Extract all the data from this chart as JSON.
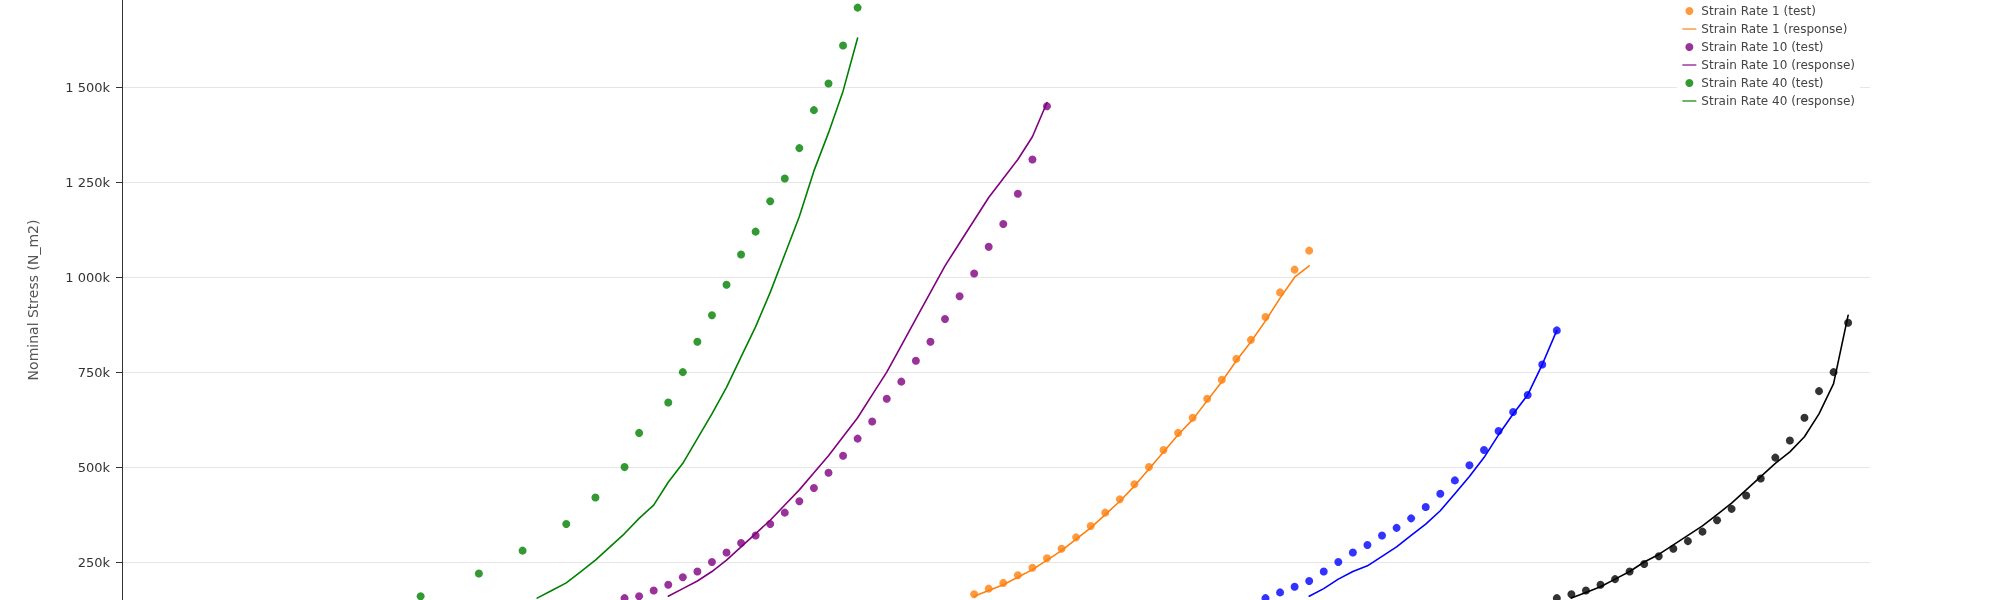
{
  "chart_data": {
    "type": "scatter",
    "ylabel": "Nominal Stress (N_m2)",
    "categories": [
      null,
      null,
      null,
      null,
      null,
      null,
      null,
      null,
      null,
      null,
      null,
      null,
      null,
      null,
      null,
      null,
      null,
      null,
      null,
      null,
      null,
      null,
      null,
      null,
      null,
      null,
      null,
      null,
      null,
      null,
      null,
      null,
      null,
      null,
      null,
      null,
      null,
      null,
      null,
      null,
      null,
      null,
      null,
      null,
      null,
      null,
      null,
      null,
      null,
      null,
      null,
      null,
      null,
      null,
      null,
      null,
      null,
      null,
      null,
      null,
      null,
      null,
      null,
      null,
      null,
      null,
      null,
      null,
      null,
      null,
      null,
      null,
      null,
      null,
      null,
      null,
      null,
      null,
      null,
      null,
      null,
      null,
      null,
      null,
      null,
      null,
      null,
      null,
      null,
      null,
      null,
      null,
      null,
      null,
      null,
      null,
      null,
      null,
      null,
      null,
      null,
      null,
      null,
      null,
      null,
      null,
      null,
      null,
      null,
      null,
      null,
      null,
      null,
      null,
      null,
      null,
      null,
      null,
      null,
      null
    ],
    "ylim": [
      150000,
      1730000
    ],
    "yticks": [
      {
        "value": 250000,
        "label": "250k"
      },
      {
        "value": 500000,
        "label": "500k"
      },
      {
        "value": 750000,
        "label": "750k"
      },
      {
        "value": 1000000,
        "label": "1 000k"
      },
      {
        "value": 1250000,
        "label": "1 250k"
      },
      {
        "value": 1500000,
        "label": "1 500k"
      }
    ],
    "grid": "y",
    "legend": "top right",
    "tick_labels": "y",
    "marker": "circle",
    "series": [
      {
        "name": "Strain Rate 1 (test)",
        "color": "#ff7f0e",
        "values": [
          null,
          null,
          null,
          null,
          null,
          null,
          null,
          null,
          null,
          null,
          null,
          null,
          null,
          null,
          null,
          null,
          null,
          null,
          null,
          null,
          null,
          null,
          null,
          null,
          null,
          null,
          null,
          null,
          null,
          null,
          null,
          null,
          null,
          null,
          null,
          null,
          null,
          null,
          null,
          null,
          null,
          null,
          null,
          null,
          null,
          null,
          null,
          null,
          null,
          null,
          null,
          null,
          null,
          null,
          null,
          null,
          null,
          null,
          165000,
          180000,
          195000,
          215000,
          235000,
          260000,
          285000,
          315000,
          345000,
          380000,
          415000,
          455000,
          500000,
          545000,
          590000,
          630000,
          680000,
          730000,
          785000,
          835000,
          895000,
          960000,
          1020000,
          1070000,
          null,
          null,
          null,
          null,
          null,
          null,
          null,
          null,
          null,
          null,
          null,
          null,
          null,
          null,
          null,
          null,
          null,
          null,
          null,
          null,
          null,
          null,
          null,
          null,
          null,
          null,
          null,
          null,
          null,
          null,
          null,
          null,
          null,
          null,
          null,
          null,
          null,
          null
        ]
      },
      {
        "name": "Strain Rate 1 (response)",
        "type": "line",
        "marker": "none",
        "color": "#ff7f0e",
        "values": [
          null,
          null,
          null,
          null,
          null,
          null,
          null,
          null,
          null,
          null,
          null,
          null,
          null,
          null,
          null,
          null,
          null,
          null,
          null,
          null,
          null,
          null,
          null,
          null,
          null,
          null,
          null,
          null,
          null,
          null,
          null,
          null,
          null,
          null,
          null,
          null,
          null,
          null,
          null,
          null,
          null,
          null,
          null,
          null,
          null,
          null,
          null,
          null,
          null,
          null,
          null,
          null,
          null,
          null,
          null,
          null,
          null,
          null,
          160000,
          175000,
          190000,
          210000,
          230000,
          255000,
          280000,
          310000,
          340000,
          375000,
          410000,
          450000,
          495000,
          540000,
          585000,
          625000,
          675000,
          725000,
          780000,
          830000,
          885000,
          945000,
          1000000,
          1030000,
          null,
          null,
          null,
          null,
          null,
          null,
          null,
          null,
          null,
          null,
          null,
          null,
          null,
          null,
          null,
          null,
          null,
          null,
          null,
          null,
          null,
          null,
          null,
          null,
          null,
          null,
          null,
          null,
          null,
          null,
          null,
          null,
          null,
          null,
          null,
          null,
          null,
          null
        ]
      },
      {
        "name": "Strain Rate 10 (test)",
        "color": "#800080",
        "values": [
          null,
          null,
          null,
          null,
          null,
          null,
          null,
          null,
          null,
          null,
          null,
          null,
          null,
          null,
          null,
          null,
          null,
          null,
          null,
          null,
          null,
          null,
          null,
          null,
          null,
          null,
          null,
          null,
          null,
          null,
          null,
          null,
          null,
          null,
          155000,
          160000,
          175000,
          190000,
          210000,
          225000,
          250000,
          275000,
          300000,
          320000,
          350000,
          380000,
          410000,
          445000,
          485000,
          530000,
          575000,
          620000,
          680000,
          725000,
          780000,
          830000,
          890000,
          950000,
          1010000,
          1080000,
          1140000,
          1220000,
          1310000,
          1450000,
          null,
          null,
          null,
          null,
          null,
          null,
          null,
          null,
          null,
          null,
          null,
          null,
          null,
          null,
          null,
          null,
          null,
          null,
          null,
          null,
          null,
          null,
          null,
          null,
          null,
          null,
          null,
          null,
          null,
          null,
          null,
          null,
          null,
          null,
          null,
          null,
          null,
          null,
          null,
          null,
          null,
          null,
          null,
          null,
          null,
          null,
          null,
          null,
          null,
          null,
          null,
          null,
          null,
          null,
          null,
          null
        ]
      },
      {
        "name": "Strain Rate 10 (response)",
        "type": "line",
        "marker": "none",
        "color": "#800080",
        "values": [
          null,
          null,
          null,
          null,
          null,
          null,
          null,
          null,
          null,
          null,
          null,
          null,
          null,
          null,
          null,
          null,
          null,
          null,
          null,
          null,
          null,
          null,
          null,
          null,
          null,
          null,
          null,
          null,
          null,
          null,
          null,
          null,
          null,
          null,
          null,
          null,
          null,
          160000,
          180000,
          200000,
          225000,
          255000,
          290000,
          325000,
          360000,
          400000,
          440000,
          485000,
          530000,
          580000,
          630000,
          690000,
          750000,
          820000,
          890000,
          960000,
          1030000,
          1090000,
          1150000,
          1210000,
          1260000,
          1310000,
          1370000,
          1460000,
          null,
          null,
          null,
          null,
          null,
          null,
          null,
          null,
          null,
          null,
          null,
          null,
          null,
          null,
          null,
          null,
          null,
          null,
          null,
          null,
          null,
          null,
          null,
          null,
          null,
          null,
          null,
          null,
          null,
          null,
          null,
          null,
          null,
          null,
          null,
          null,
          null,
          null,
          null,
          null,
          null,
          null,
          null,
          null,
          null,
          null,
          null,
          null,
          null,
          null,
          null,
          null,
          null,
          null,
          null,
          null
        ]
      },
      {
        "name": "Strain Rate 40 (test)",
        "color": "#008000",
        "values": [
          null,
          null,
          null,
          null,
          null,
          null,
          null,
          null,
          null,
          null,
          null,
          null,
          null,
          null,
          null,
          null,
          null,
          null,
          null,
          null,
          160000,
          null,
          null,
          null,
          220000,
          null,
          null,
          280000,
          null,
          null,
          350000,
          null,
          420000,
          null,
          500000,
          590000,
          null,
          670000,
          750000,
          830000,
          900000,
          980000,
          1060000,
          1120000,
          1200000,
          1260000,
          1340000,
          1440000,
          1510000,
          1610000,
          1710000,
          null,
          null,
          null,
          null,
          null,
          null,
          null,
          null,
          null,
          null,
          null,
          null,
          null,
          null,
          null,
          null,
          null,
          null,
          null,
          null,
          null,
          null,
          null,
          null,
          null,
          null,
          null,
          null,
          null,
          null,
          null,
          null,
          null,
          null,
          null,
          null,
          null,
          null,
          null,
          null,
          null,
          null,
          null,
          null,
          null,
          null,
          null,
          null,
          null,
          null,
          null,
          null,
          null,
          null,
          null,
          null,
          null,
          null,
          null,
          null,
          null,
          null,
          null,
          null,
          null,
          null,
          null,
          null,
          null
        ]
      },
      {
        "name": "Strain Rate 40 (response)",
        "type": "line",
        "marker": "none",
        "color": "#008000",
        "values": [
          null,
          null,
          null,
          null,
          null,
          null,
          null,
          null,
          null,
          null,
          null,
          null,
          null,
          null,
          null,
          null,
          null,
          null,
          null,
          null,
          null,
          null,
          null,
          null,
          null,
          null,
          null,
          null,
          155000,
          175000,
          195000,
          225000,
          255000,
          290000,
          325000,
          365000,
          400000,
          460000,
          510000,
          575000,
          640000,
          710000,
          790000,
          870000,
          960000,
          1060000,
          1160000,
          1280000,
          1380000,
          1490000,
          1630000,
          null,
          null,
          null,
          null,
          null,
          null,
          null,
          null,
          null,
          null,
          null,
          null,
          null,
          null,
          null,
          null,
          null,
          null,
          null,
          null,
          null,
          null,
          null,
          null,
          null,
          null,
          null,
          null,
          null,
          null,
          null,
          null,
          null,
          null,
          null,
          null,
          null,
          null,
          null,
          null,
          null,
          null,
          null,
          null,
          null,
          null,
          null,
          null,
          null,
          null,
          null,
          null,
          null,
          null,
          null,
          null,
          null,
          null,
          null,
          null,
          null,
          null,
          null,
          null,
          null,
          null,
          null,
          null,
          null
        ]
      },
      {
        "color": "#0000ff",
        "values": [
          null,
          null,
          null,
          null,
          null,
          null,
          null,
          null,
          null,
          null,
          null,
          null,
          null,
          null,
          null,
          null,
          null,
          null,
          null,
          null,
          null,
          null,
          null,
          null,
          null,
          null,
          null,
          null,
          null,
          null,
          null,
          null,
          null,
          null,
          null,
          null,
          null,
          null,
          null,
          null,
          null,
          null,
          null,
          null,
          null,
          null,
          null,
          null,
          null,
          null,
          null,
          null,
          null,
          null,
          null,
          null,
          null,
          null,
          null,
          null,
          null,
          null,
          null,
          null,
          null,
          null,
          null,
          null,
          null,
          null,
          null,
          null,
          null,
          null,
          null,
          null,
          null,
          null,
          155000,
          170000,
          185000,
          200000,
          225000,
          250000,
          275000,
          295000,
          320000,
          340000,
          365000,
          395000,
          430000,
          465000,
          505000,
          545000,
          595000,
          645000,
          690000,
          770000,
          860000,
          null,
          null,
          null,
          null,
          null,
          null,
          null,
          null,
          null,
          null,
          null,
          null,
          null,
          null,
          null,
          null,
          null,
          null,
          null,
          null,
          null
        ]
      },
      {
        "type": "line",
        "marker": "none",
        "color": "#0000ff",
        "values": [
          null,
          null,
          null,
          null,
          null,
          null,
          null,
          null,
          null,
          null,
          null,
          null,
          null,
          null,
          null,
          null,
          null,
          null,
          null,
          null,
          null,
          null,
          null,
          null,
          null,
          null,
          null,
          null,
          null,
          null,
          null,
          null,
          null,
          null,
          null,
          null,
          null,
          null,
          null,
          null,
          null,
          null,
          null,
          null,
          null,
          null,
          null,
          null,
          null,
          null,
          null,
          null,
          null,
          null,
          null,
          null,
          null,
          null,
          null,
          null,
          null,
          null,
          null,
          null,
          null,
          null,
          null,
          null,
          null,
          null,
          null,
          null,
          null,
          null,
          null,
          null,
          null,
          null,
          null,
          null,
          null,
          160000,
          180000,
          205000,
          225000,
          240000,
          265000,
          290000,
          320000,
          350000,
          385000,
          430000,
          475000,
          525000,
          585000,
          640000,
          690000,
          770000,
          860000,
          null,
          null,
          null,
          null,
          null,
          null,
          null,
          null,
          null,
          null,
          null,
          null,
          null,
          null,
          null,
          null,
          null,
          null,
          null,
          null,
          null
        ]
      },
      {
        "color": "#000000",
        "values": [
          null,
          null,
          null,
          null,
          null,
          null,
          null,
          null,
          null,
          null,
          null,
          null,
          null,
          null,
          null,
          null,
          null,
          null,
          null,
          null,
          null,
          null,
          null,
          null,
          null,
          null,
          null,
          null,
          null,
          null,
          null,
          null,
          null,
          null,
          null,
          null,
          null,
          null,
          null,
          null,
          null,
          null,
          null,
          null,
          null,
          null,
          null,
          null,
          null,
          null,
          null,
          null,
          null,
          null,
          null,
          null,
          null,
          null,
          null,
          null,
          null,
          null,
          null,
          null,
          null,
          null,
          null,
          null,
          null,
          null,
          null,
          null,
          null,
          null,
          null,
          null,
          null,
          null,
          null,
          null,
          null,
          null,
          null,
          null,
          null,
          null,
          null,
          null,
          null,
          null,
          null,
          null,
          null,
          null,
          null,
          null,
          null,
          null,
          155000,
          165000,
          175000,
          190000,
          205000,
          225000,
          245000,
          265000,
          285000,
          305000,
          330000,
          360000,
          390000,
          425000,
          470000,
          525000,
          570000,
          630000,
          700000,
          750000,
          880000,
          null
        ]
      },
      {
        "type": "line",
        "marker": "none",
        "color": "#000000",
        "values": [
          null,
          null,
          null,
          null,
          null,
          null,
          null,
          null,
          null,
          null,
          null,
          null,
          null,
          null,
          null,
          null,
          null,
          null,
          null,
          null,
          null,
          null,
          null,
          null,
          null,
          null,
          null,
          null,
          null,
          null,
          null,
          null,
          null,
          null,
          null,
          null,
          null,
          null,
          null,
          null,
          null,
          null,
          null,
          null,
          null,
          null,
          null,
          null,
          null,
          null,
          null,
          null,
          null,
          null,
          null,
          null,
          null,
          null,
          null,
          null,
          null,
          null,
          null,
          null,
          null,
          null,
          null,
          null,
          null,
          null,
          null,
          null,
          null,
          null,
          null,
          null,
          null,
          null,
          null,
          null,
          null,
          null,
          null,
          null,
          null,
          null,
          null,
          null,
          null,
          null,
          null,
          null,
          null,
          null,
          null,
          null,
          null,
          null,
          null,
          155000,
          170000,
          185000,
          205000,
          225000,
          250000,
          270000,
          295000,
          320000,
          345000,
          375000,
          405000,
          440000,
          475000,
          510000,
          540000,
          580000,
          640000,
          720000,
          900000,
          null
        ]
      }
    ]
  }
}
